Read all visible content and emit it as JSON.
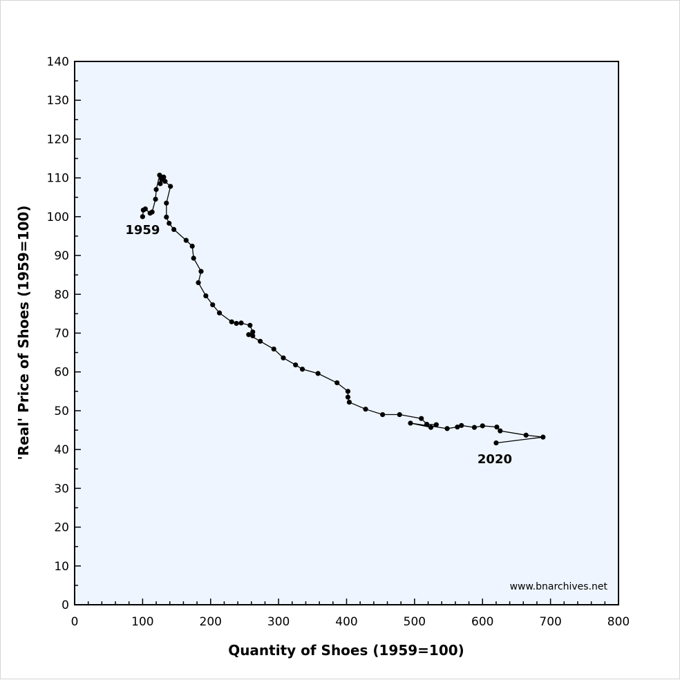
{
  "chart_data": {
    "type": "line",
    "xlabel": "Quantity of Shoes (1959=100)",
    "ylabel": "'Real' Price of Shoes (1959=100)",
    "xlim": [
      0,
      800
    ],
    "ylim": [
      0,
      140
    ],
    "x_major_ticks": [
      0,
      100,
      200,
      300,
      400,
      500,
      600,
      700,
      800
    ],
    "x_tick_labels": [
      "0",
      "100",
      "200",
      "300",
      "400",
      "500",
      "600",
      "700",
      "800"
    ],
    "y_major_ticks": [
      0,
      10,
      20,
      30,
      40,
      50,
      60,
      70,
      80,
      90,
      100,
      110,
      120,
      130,
      140
    ],
    "y_tick_labels": [
      "0",
      "10",
      "20",
      "30",
      "40",
      "50",
      "60",
      "70",
      "80",
      "90",
      "100",
      "110",
      "120",
      "130",
      "140"
    ],
    "x_minor_step": 20,
    "y_minor_step": 5,
    "grid": false,
    "plot_background": "#eef5fe",
    "series_color": "#000000",
    "series": [
      {
        "points": [
          [
            100,
            100.0
          ],
          [
            101,
            101.7
          ],
          [
            104,
            102.0
          ],
          [
            111,
            100.9
          ],
          [
            114,
            101.2
          ],
          [
            119,
            104.5
          ],
          [
            120,
            107.0
          ],
          [
            125,
            110.7
          ],
          [
            126,
            108.5
          ],
          [
            128,
            109.6
          ],
          [
            131,
            110.2
          ],
          [
            133,
            109.1
          ],
          [
            141,
            107.8
          ],
          [
            135,
            103.5
          ],
          [
            135,
            99.9
          ],
          [
            139,
            98.3
          ],
          [
            146,
            96.7
          ],
          [
            164,
            93.9
          ],
          [
            173,
            92.4
          ],
          [
            175,
            89.3
          ],
          [
            186,
            85.9
          ],
          [
            182,
            83.0
          ],
          [
            193,
            79.6
          ],
          [
            203,
            77.3
          ],
          [
            213,
            75.2
          ],
          [
            231,
            72.9
          ],
          [
            238,
            72.5
          ],
          [
            245,
            72.6
          ],
          [
            258,
            72.0
          ],
          [
            262,
            70.3
          ],
          [
            262,
            69.3
          ],
          [
            256,
            69.6
          ],
          [
            273,
            67.9
          ],
          [
            293,
            65.9
          ],
          [
            307,
            63.6
          ],
          [
            325,
            61.8
          ],
          [
            335,
            60.7
          ],
          [
            358,
            59.6
          ],
          [
            386,
            57.2
          ],
          [
            402,
            55.0
          ],
          [
            402,
            53.5
          ],
          [
            404,
            52.2
          ],
          [
            428,
            50.4
          ],
          [
            453,
            49.0
          ],
          [
            478,
            49.0
          ],
          [
            510,
            48.0
          ],
          [
            518,
            46.5
          ],
          [
            532,
            46.4
          ],
          [
            524,
            45.7
          ],
          [
            494,
            46.8
          ],
          [
            548,
            45.4
          ],
          [
            563,
            45.8
          ],
          [
            569,
            46.2
          ],
          [
            588,
            45.7
          ],
          [
            600,
            46.1
          ],
          [
            621,
            45.8
          ],
          [
            626,
            44.8
          ],
          [
            664,
            43.7
          ],
          [
            689,
            43.2
          ],
          [
            620,
            41.7
          ]
        ]
      }
    ],
    "annotations": [
      {
        "text": "1959",
        "x": 100,
        "y": 95.5
      },
      {
        "text": "2020",
        "x": 618,
        "y": 36.5
      }
    ],
    "source_note": "www.bnarchives.net"
  }
}
